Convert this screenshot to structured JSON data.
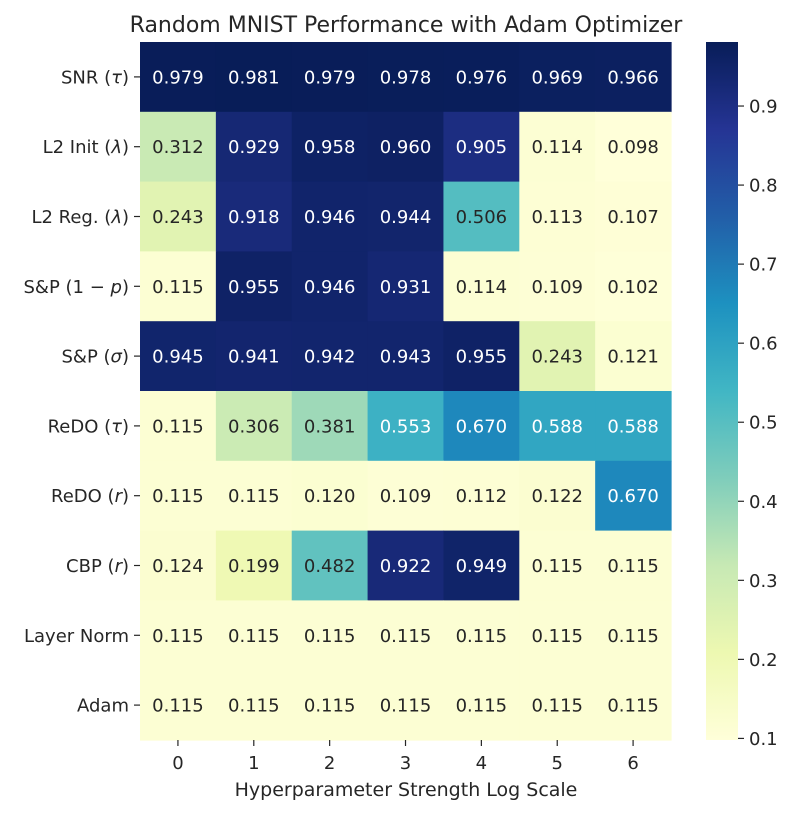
{
  "chart_data": {
    "type": "heatmap",
    "title": "Random MNIST Performance with Adam Optimizer",
    "xlabel": "Hyperparameter Strength Log Scale",
    "ylabel": "",
    "x_categories": [
      "0",
      "1",
      "2",
      "3",
      "4",
      "5",
      "6"
    ],
    "y_categories": [
      "SNR (τ)",
      "L2 Init (λ)",
      "L2 Reg. (λ)",
      "S&P (1 − p)",
      "S&P (σ)",
      "ReDO (τ)",
      "ReDO (r)",
      "CBP (r)",
      "Layer Norm",
      "Adam"
    ],
    "y_label_parts": [
      [
        [
          "SNR ("
        ],
        [
          "τ",
          "italic"
        ],
        [
          ")"
        ]
      ],
      [
        [
          "L2 Init ("
        ],
        [
          "λ",
          "italic"
        ],
        [
          ")"
        ]
      ],
      [
        [
          "L2 Reg. ("
        ],
        [
          "λ",
          "italic"
        ],
        [
          ")"
        ]
      ],
      [
        [
          "S&P (1 − "
        ],
        [
          "p",
          "italic"
        ],
        [
          ")"
        ]
      ],
      [
        [
          "S&P ("
        ],
        [
          "σ",
          "italic"
        ],
        [
          ")"
        ]
      ],
      [
        [
          "ReDO ("
        ],
        [
          "τ",
          "italic"
        ],
        [
          ")"
        ]
      ],
      [
        [
          "ReDO ("
        ],
        [
          "r",
          "italic"
        ],
        [
          ")"
        ]
      ],
      [
        [
          "CBP ("
        ],
        [
          "r",
          "italic"
        ],
        [
          ")"
        ]
      ],
      [
        [
          "Layer Norm"
        ]
      ],
      [
        [
          "Adam"
        ]
      ]
    ],
    "values": [
      [
        0.979,
        0.981,
        0.979,
        0.978,
        0.976,
        0.969,
        0.966
      ],
      [
        0.312,
        0.929,
        0.958,
        0.96,
        0.905,
        0.114,
        0.098
      ],
      [
        0.243,
        0.918,
        0.946,
        0.944,
        0.506,
        0.113,
        0.107
      ],
      [
        0.115,
        0.955,
        0.946,
        0.931,
        0.114,
        0.109,
        0.102
      ],
      [
        0.945,
        0.941,
        0.942,
        0.943,
        0.955,
        0.243,
        0.121
      ],
      [
        0.115,
        0.306,
        0.381,
        0.553,
        0.67,
        0.588,
        0.588
      ],
      [
        0.115,
        0.115,
        0.12,
        0.109,
        0.112,
        0.122,
        0.67
      ],
      [
        0.124,
        0.199,
        0.482,
        0.922,
        0.949,
        0.115,
        0.115
      ],
      [
        0.115,
        0.115,
        0.115,
        0.115,
        0.115,
        0.115,
        0.115
      ],
      [
        0.115,
        0.115,
        0.115,
        0.115,
        0.115,
        0.115,
        0.115
      ]
    ],
    "colormap": "YlGnBu",
    "colormap_stops": [
      "#ffffd9",
      "#edf8b1",
      "#c7e9b4",
      "#7fcdbb",
      "#41b6c4",
      "#1d91c0",
      "#225ea8",
      "#253494",
      "#081d58"
    ],
    "vmin": 0.098,
    "vmax": 0.981,
    "colorbar_ticks": [
      "0.1",
      "0.2",
      "0.3",
      "0.4",
      "0.5",
      "0.6",
      "0.7",
      "0.8",
      "0.9"
    ],
    "annotation_dark_color": "#262626",
    "annotation_light_color": "#ffffff"
  }
}
